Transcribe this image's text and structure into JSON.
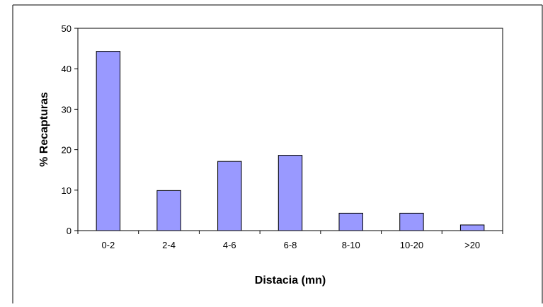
{
  "chart_data": {
    "type": "bar",
    "title": "",
    "xlabel": "Distacia (mn)",
    "ylabel": "% Recapturas",
    "categories": [
      "0-2",
      "2-4",
      "4-6",
      "6-8",
      "8-10",
      "10-20",
      ">20"
    ],
    "values": [
      44.3,
      9.9,
      17.1,
      18.6,
      4.3,
      4.3,
      1.4
    ],
    "ylim": [
      0,
      50
    ],
    "yticks": [
      0,
      10,
      20,
      30,
      40,
      50
    ],
    "grid": false,
    "legend": "none",
    "colors": {
      "bar_fill": "#9999ff",
      "bar_stroke": "#000000",
      "axis": "#000000",
      "frame": "#000000",
      "background": "#ffffff"
    }
  }
}
